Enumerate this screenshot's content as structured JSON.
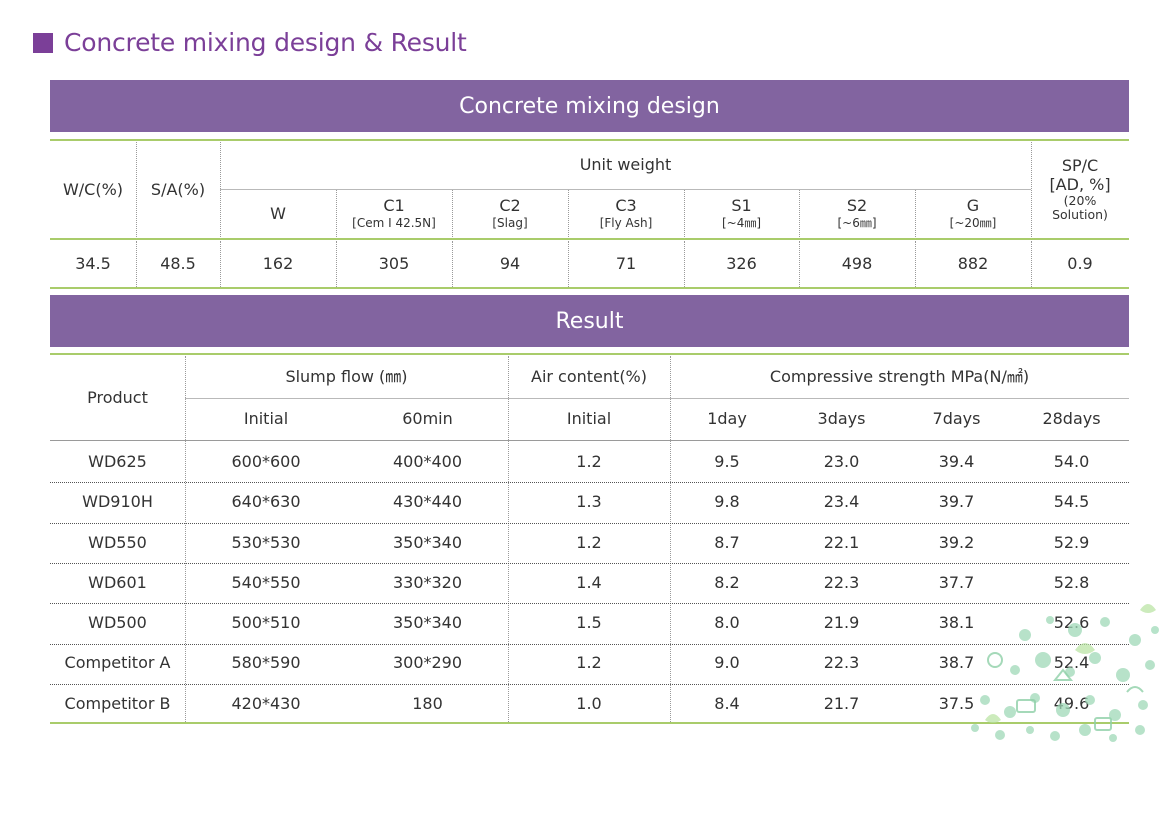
{
  "heading": "Concrete mixing design & Result",
  "mixing": {
    "title": "Concrete mixing design",
    "headers": {
      "wc": "W/C(%)",
      "sa": "S/A(%)",
      "unit_weight": "Unit weight",
      "sp_line1": "SP/C",
      "sp_line2": "[AD, %]",
      "sp_line3": "(20%",
      "sp_line4": "Solution)"
    },
    "columns": [
      {
        "label": "W",
        "sub": ""
      },
      {
        "label": "C1",
        "sub": "[Cem Ⅰ 42.5N]"
      },
      {
        "label": "C2",
        "sub": "[Slag]"
      },
      {
        "label": "C3",
        "sub": "[Fly Ash]"
      },
      {
        "label": "S1",
        "sub": "[~4㎜]"
      },
      {
        "label": "S2",
        "sub": "[~6㎜]"
      },
      {
        "label": "G",
        "sub": "[~20㎜]"
      }
    ],
    "values": [
      "34.5",
      "48.5",
      "162",
      "305",
      "94",
      "71",
      "326",
      "498",
      "882",
      "0.9"
    ]
  },
  "result": {
    "title": "Result",
    "headers": {
      "product": "Product",
      "slump": "Slump flow (㎜)",
      "air": "Air content(%)",
      "strength": "Compressive strength MPa(N/㎟)"
    },
    "subheaders": [
      "Initial",
      "60min",
      "Initial",
      "1day",
      "3days",
      "7days",
      "28days"
    ],
    "rows": [
      [
        "WD625",
        "600*600",
        "400*400",
        "1.2",
        "9.5",
        "23.0",
        "39.4",
        "54.0"
      ],
      [
        "WD910H",
        "640*630",
        "430*440",
        "1.3",
        "9.8",
        "23.4",
        "39.7",
        "54.5"
      ],
      [
        "WD550",
        "530*530",
        "350*340",
        "1.2",
        "8.7",
        "22.1",
        "39.2",
        "52.9"
      ],
      [
        "WD601",
        "540*550",
        "330*320",
        "1.4",
        "8.2",
        "22.3",
        "37.7",
        "52.8"
      ],
      [
        "WD500",
        "500*510",
        "350*340",
        "1.5",
        "8.0",
        "21.9",
        "38.1",
        "52.6"
      ],
      [
        "Competitor A",
        "580*590",
        "300*290",
        "1.2",
        "9.0",
        "22.3",
        "38.7",
        "52.4"
      ],
      [
        "Competitor B",
        "420*430",
        "180",
        "1.0",
        "8.4",
        "21.7",
        "37.5",
        "49.6"
      ]
    ]
  },
  "colors": {
    "band": "#8264a0",
    "heading": "#7b3f98",
    "accent_line": "#a9cc6b"
  },
  "decoration": "green-eco-doodle-pattern"
}
